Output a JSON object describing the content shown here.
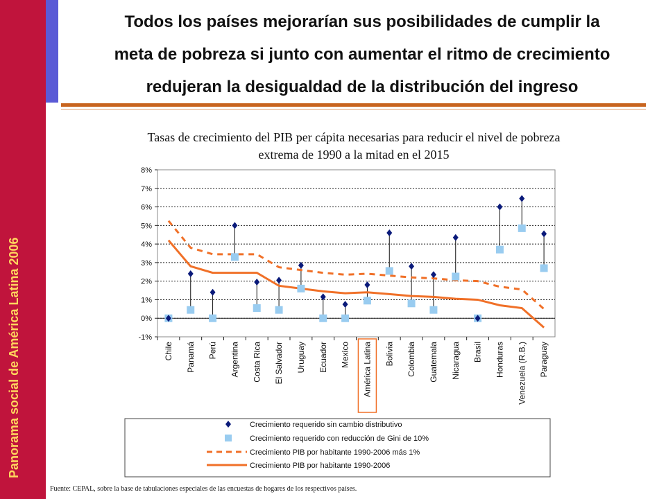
{
  "sidebar": {
    "label": "Panorama social de América Latina 2006"
  },
  "header": {
    "title_lines": [
      "Todos los países mejorarían sus posibilidades de cumplir la",
      "meta de pobreza si junto con aumentar el ritmo de crecimiento",
      "redujeran la desigualdad de la distribución del ingreso"
    ]
  },
  "chart_data": {
    "type": "line",
    "title_lines": [
      "Tasas de crecimiento del PIB per cápita necesarias para reducir el nivel de pobreza",
      "extrema de 1990 a la mitad en el 2015"
    ],
    "categories": [
      "Chile",
      "Panamá",
      "Perú",
      "Argentina",
      "Costa Rica",
      "El Salvador",
      "Uruguay",
      "Ecuador",
      "Mexico",
      "América Latina",
      "Bolivia",
      "Colombia",
      "Guatemala",
      "Nicaragua",
      "Brasil",
      "Honduras",
      "Venezuela (R.B.)",
      "Paraguay"
    ],
    "highlighted_category": "América Latina",
    "ylim": [
      -1,
      8
    ],
    "yticks": [
      -1,
      0,
      1,
      2,
      3,
      4,
      5,
      6,
      7,
      8
    ],
    "ytick_labels": [
      "-1%",
      "0%",
      "1%",
      "2%",
      "3%",
      "4%",
      "5%",
      "6%",
      "7%",
      "8%"
    ],
    "grid": true,
    "series": [
      {
        "name": "Crecimiento requerido sin cambio distributivo",
        "style": "diamond",
        "color": "#0a1a7a",
        "values": [
          0.0,
          2.4,
          1.4,
          5.0,
          1.95,
          2.05,
          2.85,
          1.15,
          0.75,
          1.8,
          4.6,
          2.8,
          2.35,
          4.35,
          0.0,
          6.0,
          6.45,
          4.55
        ]
      },
      {
        "name": "Crecimiento requerido con reducción de Gini de 10%",
        "style": "square",
        "color": "#99ccf0",
        "values": [
          0.0,
          0.45,
          0.0,
          3.3,
          0.55,
          0.45,
          1.6,
          0.0,
          0.0,
          0.95,
          2.55,
          0.8,
          0.45,
          2.25,
          0.0,
          3.7,
          4.85,
          2.7
        ]
      },
      {
        "name": "Crecimiento PIB por habitante 1990-2006 más 1%",
        "style": "dashed",
        "color": "#f07028",
        "values": [
          5.25,
          3.8,
          3.45,
          3.45,
          3.45,
          2.75,
          2.6,
          2.45,
          2.35,
          2.4,
          2.3,
          2.2,
          2.15,
          2.05,
          2.0,
          1.7,
          1.55,
          0.5
        ]
      },
      {
        "name": "Crecimiento PIB por habitante 1990-2006",
        "style": "solid",
        "color": "#f07028",
        "values": [
          4.2,
          2.8,
          2.45,
          2.45,
          2.45,
          1.75,
          1.6,
          1.45,
          1.35,
          1.4,
          1.3,
          1.2,
          1.15,
          1.05,
          1.0,
          0.7,
          0.55,
          -0.5
        ]
      }
    ],
    "legend_position": "bottom"
  },
  "footer": {
    "source": "Fuente: CEPAL, sobre la base de tabulaciones especiales de las encuestas de hogares de los respectivos países."
  }
}
